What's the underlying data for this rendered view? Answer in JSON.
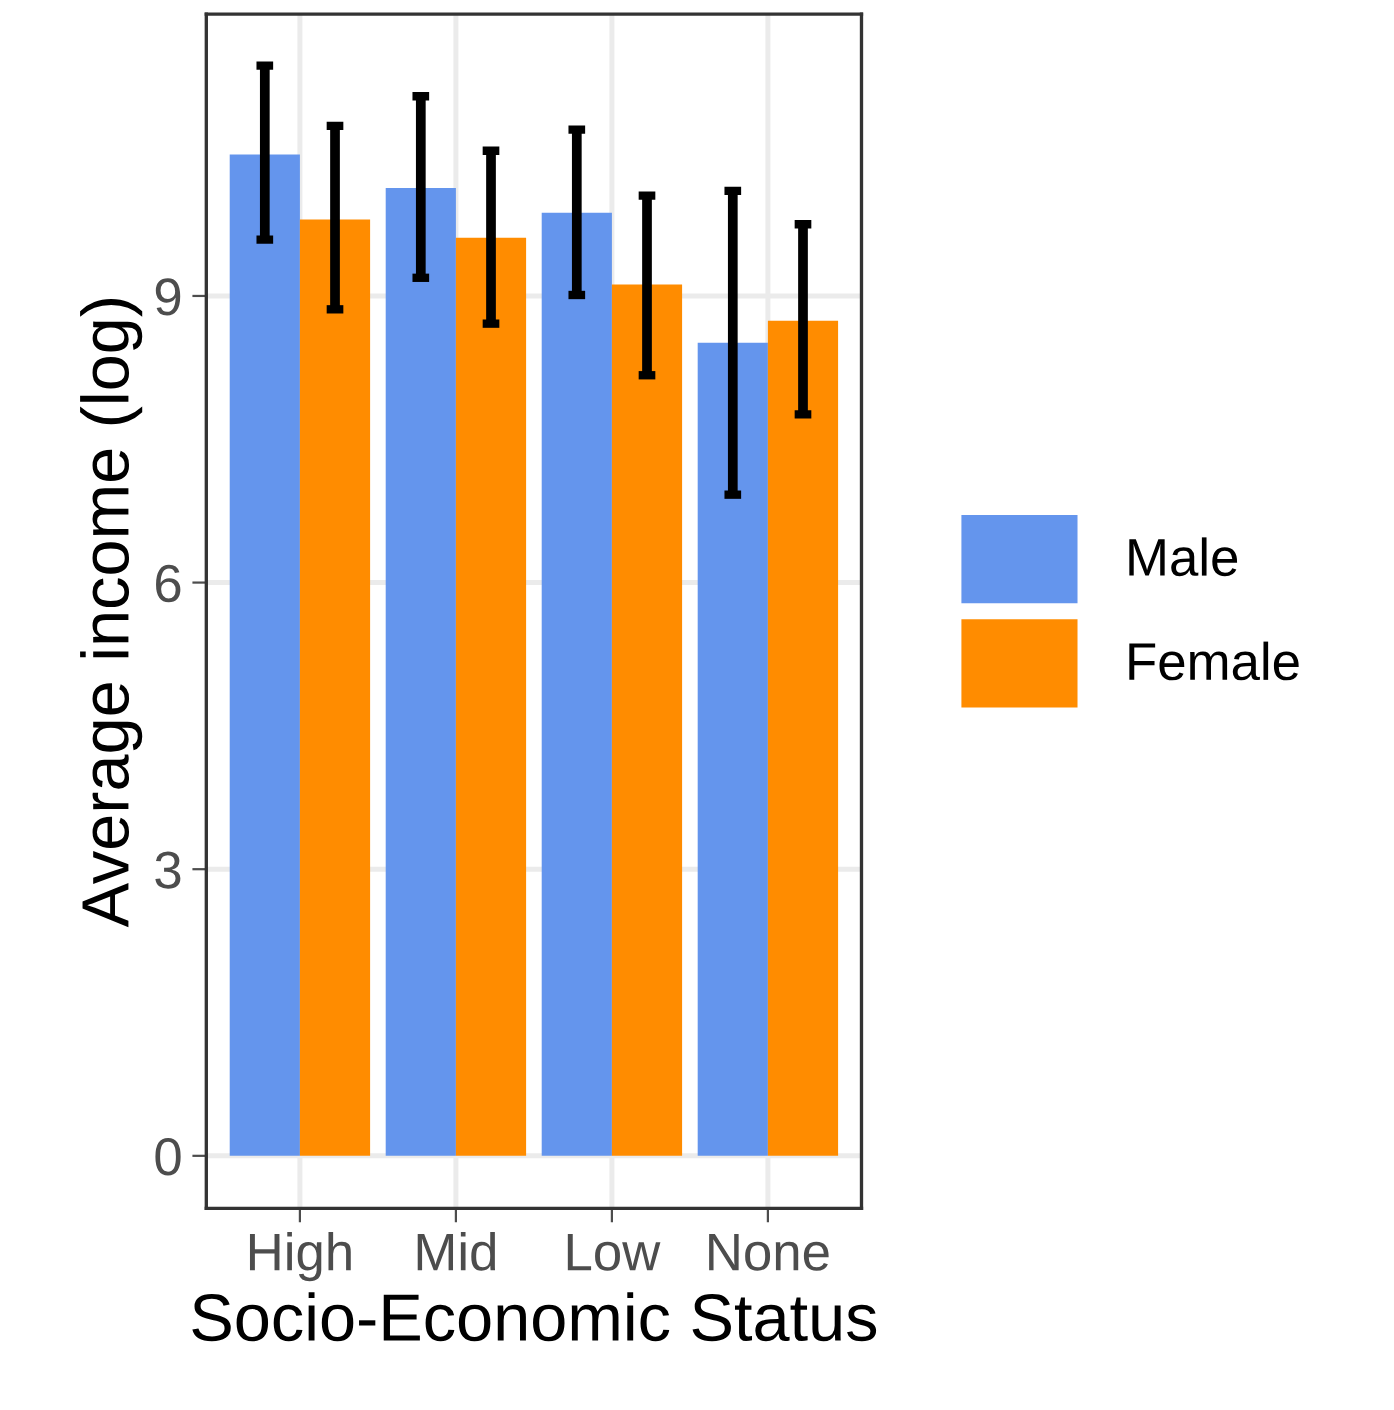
{
  "chart_data": {
    "type": "bar",
    "xlabel": "Socio-Economic Status",
    "ylabel": "Average income (log)",
    "categories": [
      "High",
      "Mid",
      "Low",
      "None"
    ],
    "series": [
      {
        "name": "Male",
        "color": "#6495ed",
        "values": [
          10.48,
          10.13,
          9.87,
          8.51
        ],
        "errors": [
          [
            9.59,
            11.41
          ],
          [
            9.19,
            11.09
          ],
          [
            9.01,
            10.74
          ],
          [
            6.92,
            10.1
          ]
        ]
      },
      {
        "name": "Female",
        "color": "#ff8c00",
        "values": [
          9.8,
          9.61,
          9.12,
          8.74
        ],
        "errors": [
          [
            8.86,
            10.78
          ],
          [
            8.71,
            10.52
          ],
          [
            8.17,
            10.05
          ],
          [
            7.76,
            9.75
          ]
        ]
      }
    ],
    "ylim": [
      -0.55,
      11.95
    ],
    "yticks": [
      0,
      3,
      6,
      9
    ],
    "grid": true,
    "legend": "right"
  }
}
